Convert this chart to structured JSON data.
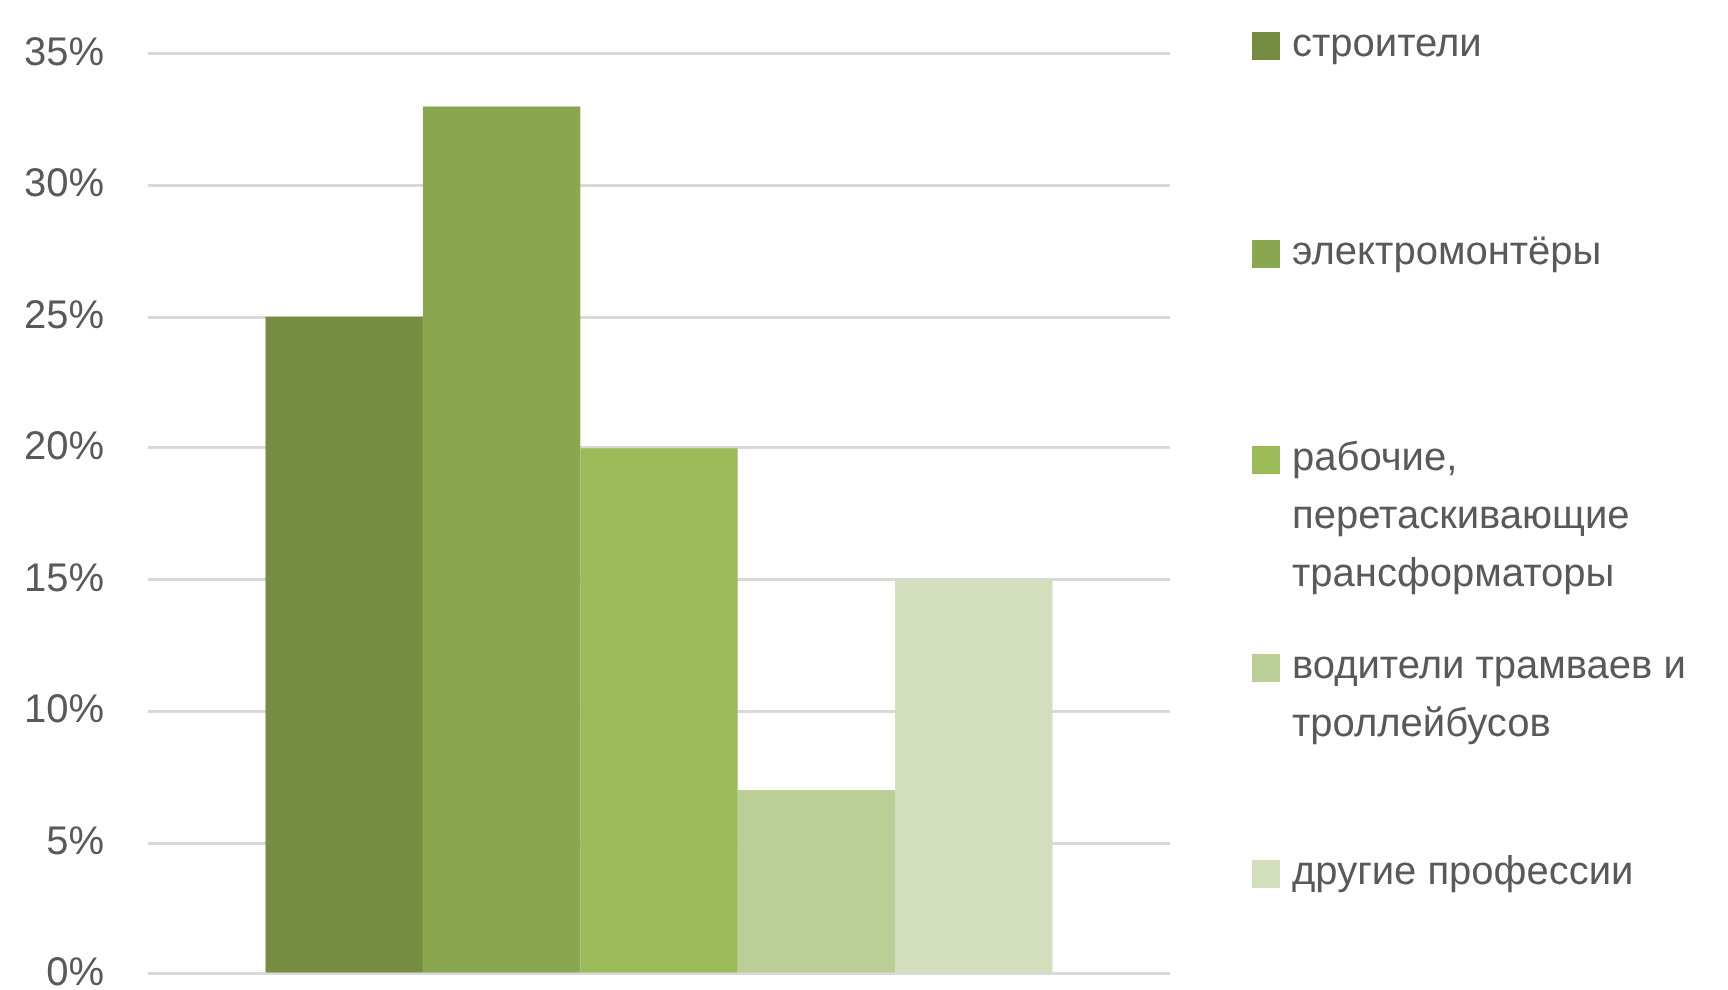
{
  "chart_data": {
    "type": "bar",
    "categories": [
      null
    ],
    "series": [
      {
        "name": "строители",
        "color": "#758c41",
        "values": [
          25
        ]
      },
      {
        "name": "электромонтёры",
        "color": "#8aa64f",
        "values": [
          33
        ]
      },
      {
        "name": "рабочие, перетаскивающие трансформаторы",
        "color": "#9bbb59",
        "values": [
          20
        ]
      },
      {
        "name": "водители трамваев и троллейбусов",
        "color": "#bbce96",
        "values": [
          7
        ]
      },
      {
        "name": "другие профессии",
        "color": "#d2debc",
        "values": [
          15
        ]
      }
    ],
    "ylim": [
      0,
      35
    ],
    "yticks": [
      {
        "value": 0,
        "label": "0%"
      },
      {
        "value": 5,
        "label": "5%"
      },
      {
        "value": 10,
        "label": "10%"
      },
      {
        "value": 15,
        "label": "15%"
      },
      {
        "value": 20,
        "label": "20%"
      },
      {
        "value": 25,
        "label": "25%"
      },
      {
        "value": 30,
        "label": "30%"
      },
      {
        "value": 35,
        "label": "35%"
      }
    ],
    "grid": "y",
    "legend": "right"
  }
}
